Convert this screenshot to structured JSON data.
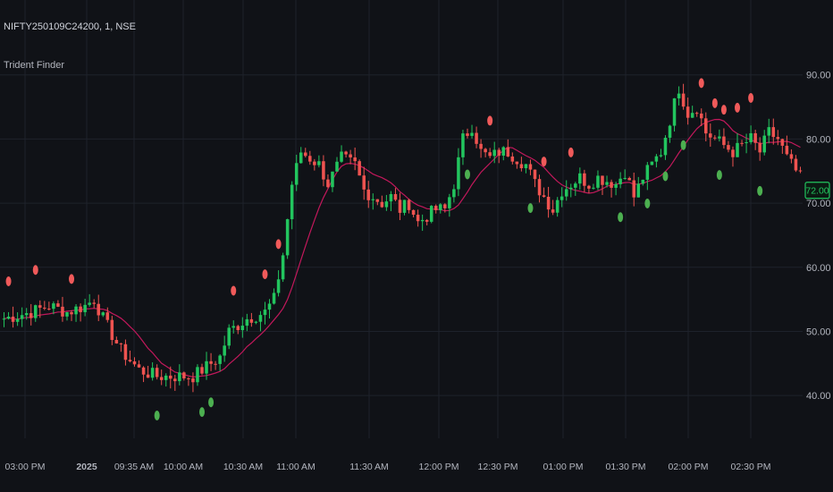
{
  "header": {
    "symbol": "NIFTY250109C24200, 1, NSE",
    "indicator": "Trident Finder"
  },
  "colors": {
    "background": "#101217",
    "grid": "#1e222b",
    "up": "#26a69a",
    "up_bright": "#22c55e",
    "down": "#ef5350",
    "ma": "#c2185b",
    "axis_text": "#b2b5be",
    "last_price": "#22c55e"
  },
  "chart_data": {
    "type": "candlestick",
    "title": "",
    "xlabel": "",
    "ylabel": "",
    "ylim": [
      35,
      100
    ],
    "grid": true,
    "y_ticks": [
      "40.00",
      "50.00",
      "60.00",
      "70.00",
      "80.00",
      "90.00"
    ],
    "x_ticks": [
      "03:00 PM",
      "2025",
      "09:35 AM",
      "10:00 AM",
      "10:30 AM",
      "11:00 AM",
      "11:30 AM",
      "12:00 PM",
      "12:30 PM",
      "01:00 PM",
      "01:30 PM",
      "02:00 PM",
      "02:30 PM"
    ],
    "last_price": "72.00",
    "close_path": [
      [
        0,
        52
      ],
      [
        6,
        53
      ],
      [
        10,
        54
      ],
      [
        14,
        53
      ],
      [
        18,
        54
      ],
      [
        20,
        55
      ],
      [
        22,
        52
      ],
      [
        26,
        47
      ],
      [
        30,
        44
      ],
      [
        34,
        43
      ],
      [
        38,
        43
      ],
      [
        42,
        43
      ],
      [
        44,
        44
      ],
      [
        48,
        46
      ],
      [
        50,
        50
      ],
      [
        54,
        52
      ],
      [
        58,
        53
      ],
      [
        60,
        55
      ],
      [
        62,
        62
      ],
      [
        64,
        73
      ],
      [
        66,
        78
      ],
      [
        70,
        76
      ],
      [
        72,
        73
      ],
      [
        75,
        77
      ],
      [
        78,
        76
      ],
      [
        80,
        72
      ],
      [
        84,
        70
      ],
      [
        86,
        71
      ],
      [
        88,
        69
      ],
      [
        90,
        70
      ],
      [
        92,
        67
      ],
      [
        94,
        68
      ],
      [
        96,
        69
      ],
      [
        98,
        69
      ],
      [
        100,
        73
      ],
      [
        102,
        80
      ],
      [
        104,
        82
      ],
      [
        106,
        78
      ],
      [
        108,
        77
      ],
      [
        110,
        78
      ],
      [
        112,
        78
      ],
      [
        116,
        76
      ],
      [
        118,
        73
      ],
      [
        120,
        71
      ],
      [
        122,
        69
      ],
      [
        124,
        72
      ],
      [
        128,
        74
      ],
      [
        130,
        73
      ],
      [
        132,
        74
      ],
      [
        136,
        73
      ],
      [
        138,
        75
      ],
      [
        140,
        71
      ],
      [
        142,
        74
      ],
      [
        146,
        78
      ],
      [
        148,
        83
      ],
      [
        150,
        88
      ],
      [
        152,
        84
      ],
      [
        154,
        85
      ],
      [
        156,
        81
      ],
      [
        160,
        79
      ],
      [
        162,
        78
      ],
      [
        166,
        80
      ],
      [
        168,
        78
      ],
      [
        170,
        81
      ],
      [
        172,
        80
      ],
      [
        174,
        77
      ],
      [
        176,
        75
      ],
      [
        178,
        73
      ]
    ],
    "candle_count": 178,
    "ma_window": 12,
    "markers": {
      "sell": [
        1,
        7,
        15,
        51,
        58,
        61,
        108,
        120,
        126,
        155,
        158,
        160,
        163,
        166
      ],
      "buy": [
        34,
        44,
        46,
        103,
        117,
        137,
        143,
        147,
        151,
        159,
        168
      ]
    }
  }
}
